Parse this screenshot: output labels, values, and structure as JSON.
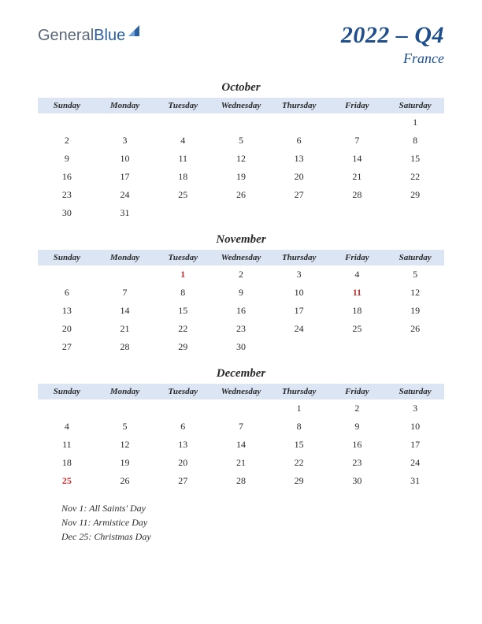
{
  "logo": {
    "general": "General",
    "blue": "Blue"
  },
  "header": {
    "quarter": "2022 – Q4",
    "country": "France"
  },
  "colors": {
    "brand_blue": "#1f4e8c",
    "header_bg": "#dbe5f4",
    "holiday_text": "#c53030",
    "body_text": "#2a2a2a"
  },
  "day_headers": [
    "Sunday",
    "Monday",
    "Tuesday",
    "Wednesday",
    "Thursday",
    "Friday",
    "Saturday"
  ],
  "months": [
    {
      "name": "October",
      "weeks": [
        [
          "",
          "",
          "",
          "",
          "",
          "",
          "1"
        ],
        [
          "2",
          "3",
          "4",
          "5",
          "6",
          "7",
          "8"
        ],
        [
          "9",
          "10",
          "11",
          "12",
          "13",
          "14",
          "15"
        ],
        [
          "16",
          "17",
          "18",
          "19",
          "20",
          "21",
          "22"
        ],
        [
          "23",
          "24",
          "25",
          "26",
          "27",
          "28",
          "29"
        ],
        [
          "30",
          "31",
          "",
          "",
          "",
          "",
          ""
        ]
      ],
      "holidays": []
    },
    {
      "name": "November",
      "weeks": [
        [
          "",
          "",
          "1",
          "2",
          "3",
          "4",
          "5"
        ],
        [
          "6",
          "7",
          "8",
          "9",
          "10",
          "11",
          "12"
        ],
        [
          "13",
          "14",
          "15",
          "16",
          "17",
          "18",
          "19"
        ],
        [
          "20",
          "21",
          "22",
          "23",
          "24",
          "25",
          "26"
        ],
        [
          "27",
          "28",
          "29",
          "30",
          "",
          "",
          ""
        ]
      ],
      "holidays": [
        "1",
        "11"
      ]
    },
    {
      "name": "December",
      "weeks": [
        [
          "",
          "",
          "",
          "",
          "1",
          "2",
          "3"
        ],
        [
          "4",
          "5",
          "6",
          "7",
          "8",
          "9",
          "10"
        ],
        [
          "11",
          "12",
          "13",
          "14",
          "15",
          "16",
          "17"
        ],
        [
          "18",
          "19",
          "20",
          "21",
          "22",
          "23",
          "24"
        ],
        [
          "25",
          "26",
          "27",
          "28",
          "29",
          "30",
          "31"
        ]
      ],
      "holidays": [
        "25"
      ]
    }
  ],
  "holiday_list": [
    "Nov 1: All Saints' Day",
    "Nov 11: Armistice Day",
    "Dec 25: Christmas Day"
  ]
}
